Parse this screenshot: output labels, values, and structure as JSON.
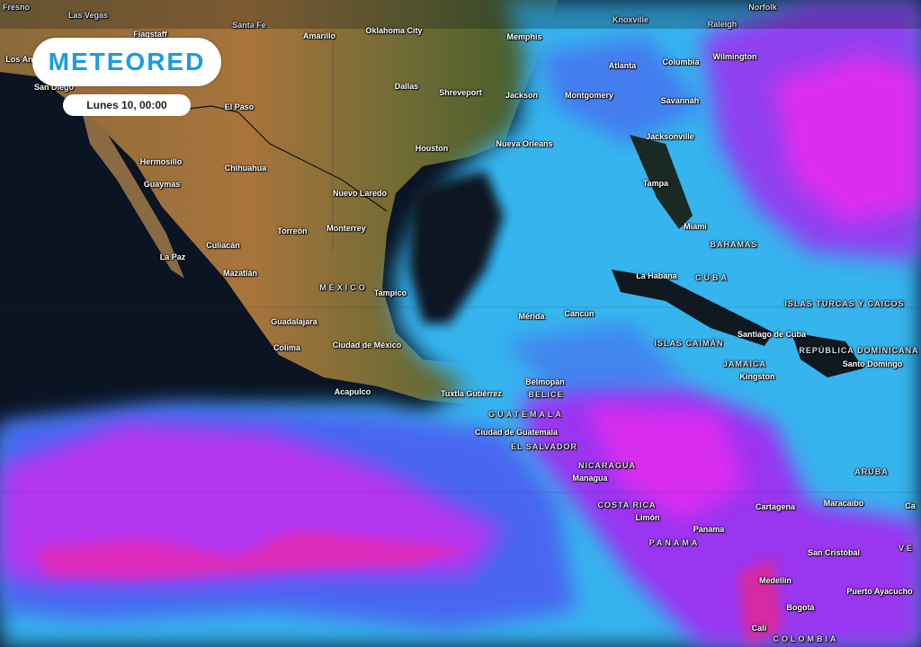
{
  "brand": {
    "logo_text": "METEORED",
    "accent_color": "#1a9de0"
  },
  "timestamp": "Lunes 10, 00:00",
  "palette": {
    "ocean": "#0a1422",
    "light_precip": "#36b4ee",
    "moderate_precip": "#4a66f0",
    "heavy_precip": "#9a36f0",
    "very_heavy_precip": "#e82cf0",
    "extreme_precip": "#ff2060"
  },
  "labels": {
    "fresno": "Fresno",
    "las_vegas": "Las Vegas",
    "santa_fe": "Santa Fe",
    "knoxville": "Knoxville",
    "raleigh": "Raleigh",
    "norfolk": "Norfolk",
    "flagstaff": "Flagstaff",
    "amarillo": "Amarillo",
    "oklahoma_city": "Oklahoma City",
    "memphis": "Memphis",
    "los_angeles": "Los Angeles",
    "san_diego": "San Diego",
    "el_paso": "El Paso",
    "dallas": "Dallas",
    "shreveport": "Shreveport",
    "jackson": "Jackson",
    "montgomery": "Montgomery",
    "atlanta": "Atlanta",
    "columbia": "Columbia",
    "wilmington": "Wilmington",
    "savannah": "Savannah",
    "hermosillo": "Hermosillo",
    "chihuahua": "Chihuahua",
    "houston": "Houston",
    "nueva_orleans": "Nueva Orleans",
    "jacksonville": "Jacksonville",
    "guaymas": "Guaymas",
    "nuevo_laredo": "Nuevo Laredo",
    "tampa": "Tampa",
    "torreon": "Torreón",
    "monterrey": "Monterrey",
    "culiacan": "Culiacán",
    "miami": "Miami",
    "bahamas": "BAHAMAS",
    "la_paz": "La Paz",
    "mazatlan": "Mazatlán",
    "mexico": "MÉXICO",
    "tampico": "Tampico",
    "la_habana": "La Habana",
    "cuba": "CUBA",
    "turcas_caicos": "ISLAS TURCAS Y CAICOS",
    "guadalajara": "Guadalajara",
    "merida": "Mérida",
    "cancun": "Cancún",
    "colima": "Colima",
    "ciudad_de_mexico": "Ciudad de México",
    "islas_caiman": "ISLAS CAIMÁN",
    "santiago_de_cuba": "Santiago de Cuba",
    "republica_dominicana": "REPÚBLICA DOMINICANA",
    "santo_domingo": "Santo Domingo",
    "jamaica": "JAMAICA",
    "kingston": "Kingston",
    "acapulco": "Acapulco",
    "tuxtla": "Tuxtla Gutiérrez",
    "belmopan": "Belmopán",
    "belice": "BELICE",
    "guatemala": "GUATEMALA",
    "ciudad_de_guatemala": "Ciudad de Guatemala",
    "el_salvador": "EL SALVADOR",
    "nicaragua": "NICARAGUA",
    "managua": "Managua",
    "aruba": "ARUBA",
    "cartagena": "Cartagena",
    "maracaibo": "Maracaibo",
    "costa_rica": "COSTA RICA",
    "limon": "Limón",
    "panama_city": "Panama",
    "panama": "PANAMA",
    "san_cristobal": "San Cristóbal",
    "venezuela": "VE",
    "medellin": "Medellín",
    "puerto_ayacucho": "Puerto Ayacucho",
    "bogota": "Bogotá",
    "cali": "Cali",
    "colombia": "COLOMBIA",
    "caracas": "Ca"
  }
}
